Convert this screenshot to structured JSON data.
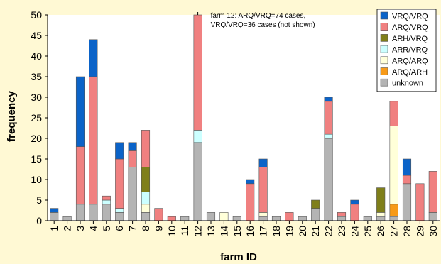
{
  "chart_data": {
    "type": "bar",
    "stacked": true,
    "title": "",
    "xlabel": "farm ID",
    "ylabel": "frequency",
    "ylim": [
      0,
      50
    ],
    "yticks": [
      0,
      5,
      10,
      15,
      20,
      25,
      30,
      35,
      40,
      45,
      50
    ],
    "grid": false,
    "legend_position": "top-right",
    "categories": [
      "1",
      "2",
      "3",
      "4",
      "5",
      "6",
      "7",
      "8",
      "9",
      "10",
      "11",
      "12",
      "13",
      "14",
      "15",
      "16",
      "17",
      "18",
      "19",
      "20",
      "21",
      "22",
      "23",
      "24",
      "25",
      "26",
      "27",
      "28",
      "29",
      "30"
    ],
    "series": [
      {
        "name": "unknown",
        "color": "#b4b4b4",
        "values": [
          2,
          1,
          4,
          4,
          4,
          2,
          13,
          2,
          0,
          0,
          1,
          19,
          2,
          0,
          1,
          0,
          1,
          1,
          0,
          1,
          3,
          20,
          1,
          0,
          1,
          1,
          1,
          9,
          0,
          2
        ]
      },
      {
        "name": "ARQ/ARH",
        "color": "#f79a18",
        "values": [
          0,
          0,
          0,
          0,
          0,
          0,
          0,
          0,
          0,
          0,
          0,
          0,
          0,
          0,
          0,
          0,
          0,
          0,
          0,
          0,
          0,
          0,
          0,
          0,
          0,
          0,
          3,
          0,
          0,
          0
        ]
      },
      {
        "name": "ARQ/ARQ",
        "color": "#ffffd9",
        "values": [
          0,
          0,
          0,
          0,
          0,
          0,
          0,
          2,
          0,
          0,
          0,
          0,
          0,
          2,
          0,
          0,
          1,
          0,
          0,
          0,
          0,
          0,
          0,
          0,
          0,
          1,
          19,
          0,
          0,
          0
        ]
      },
      {
        "name": "ARR/VRQ",
        "color": "#ccffff",
        "values": [
          0,
          0,
          0,
          0,
          1,
          1,
          0,
          3,
          0,
          0,
          0,
          3,
          0,
          0,
          0,
          0,
          0,
          0,
          0,
          0,
          0,
          1,
          0,
          0,
          0,
          0,
          0,
          0,
          0,
          0
        ]
      },
      {
        "name": "ARH/VRQ",
        "color": "#7f7f1a",
        "values": [
          0,
          0,
          0,
          0,
          0,
          0,
          0,
          6,
          0,
          0,
          0,
          0,
          0,
          0,
          0,
          0,
          0,
          0,
          0,
          0,
          2,
          0,
          0,
          0,
          0,
          6,
          0,
          0,
          0,
          0
        ]
      },
      {
        "name": "ARQ/VRQ",
        "color": "#f08080",
        "values": [
          0,
          0,
          14,
          31,
          1,
          12,
          4,
          9,
          3,
          1,
          0,
          28,
          0,
          0,
          0,
          9,
          11,
          0,
          2,
          0,
          0,
          8,
          1,
          4,
          0,
          0,
          6,
          2,
          9,
          10
        ]
      },
      {
        "name": "VRQ/VRQ",
        "color": "#0b63c8",
        "values": [
          1,
          0,
          17,
          9,
          0,
          4,
          2,
          0,
          0,
          0,
          0,
          0,
          0,
          0,
          0,
          1,
          2,
          0,
          0,
          0,
          0,
          1,
          0,
          1,
          0,
          0,
          0,
          4,
          0,
          0
        ]
      }
    ],
    "legend_order": [
      "VRQ/VRQ",
      "ARQ/VRQ",
      "ARH/VRQ",
      "ARR/VRQ",
      "ARQ/ARQ",
      "ARQ/ARH",
      "unknown"
    ],
    "annotation": {
      "category": "12",
      "lines": [
        "farm 12: ARQ/VRQ=74 cases,",
        "VRQ/VRQ=36 cases (not shown)"
      ]
    }
  }
}
